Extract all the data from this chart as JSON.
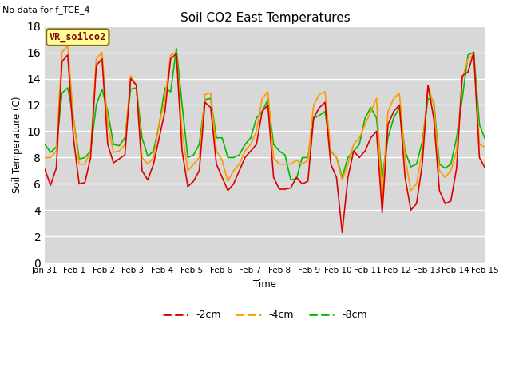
{
  "title": "Soil CO2 East Temperatures",
  "subtitle": "No data for f_TCE_4",
  "ylabel": "Soil Temperature (C)",
  "xlabel": "Time",
  "box_label": "VR_soilco2",
  "ylim": [
    0,
    18
  ],
  "yticks": [
    0,
    2,
    4,
    6,
    8,
    10,
    12,
    14,
    16,
    18
  ],
  "legend_labels": [
    "-2cm",
    "-4cm",
    "-8cm"
  ],
  "line_colors": [
    "#dd0000",
    "#ff9900",
    "#00bb00"
  ],
  "background_color": "#d8d8d8",
  "x_dates": [
    "Jan 31",
    "Feb 1",
    "Feb 2",
    "Feb 3",
    "Feb 4",
    "Feb 5",
    "Feb 6",
    "Feb 7",
    "Feb 8",
    "Feb 9",
    "Feb 10",
    "Feb 11",
    "Feb 12",
    "Feb 13",
    "Feb 14",
    "Feb 15"
  ],
  "t_2cm": [
    7.1,
    5.9,
    7.2,
    15.3,
    15.8,
    9.5,
    6.0,
    6.1,
    8.0,
    15.0,
    15.5,
    9.0,
    7.6,
    7.9,
    8.2,
    14.0,
    13.5,
    7.0,
    6.3,
    7.5,
    9.5,
    11.5,
    15.5,
    15.9,
    8.5,
    5.8,
    6.2,
    7.0,
    12.2,
    11.8,
    7.5,
    6.5,
    5.5,
    6.0,
    7.0,
    8.0,
    8.5,
    9.0,
    11.5,
    12.0,
    6.5,
    5.6,
    5.6,
    5.7,
    6.5,
    6.0,
    6.2,
    11.0,
    11.8,
    12.2,
    7.5,
    6.5,
    2.3,
    6.5,
    8.5,
    8.0,
    8.5,
    9.5,
    10.0,
    3.8,
    10.5,
    11.5,
    12.0,
    6.5,
    4.0,
    4.5,
    7.5,
    13.5,
    11.0,
    5.5,
    4.5,
    4.7,
    7.2,
    14.2,
    14.5,
    16.0,
    8.0,
    7.2
  ],
  "t_4cm": [
    8.0,
    8.0,
    8.5,
    16.0,
    16.5,
    11.0,
    7.5,
    7.5,
    8.5,
    15.5,
    16.0,
    10.5,
    8.4,
    8.5,
    9.0,
    14.2,
    13.5,
    8.0,
    7.5,
    8.0,
    10.5,
    12.5,
    15.8,
    16.0,
    10.0,
    7.0,
    7.5,
    8.0,
    12.8,
    12.9,
    8.5,
    7.8,
    6.2,
    7.0,
    7.5,
    8.5,
    9.0,
    10.0,
    12.5,
    13.0,
    8.0,
    7.5,
    7.5,
    7.5,
    7.8,
    7.5,
    7.8,
    12.0,
    12.8,
    13.0,
    8.5,
    8.0,
    6.3,
    7.5,
    9.0,
    9.5,
    10.5,
    11.5,
    12.5,
    4.8,
    11.5,
    12.5,
    12.9,
    8.0,
    5.5,
    6.0,
    8.5,
    13.5,
    12.0,
    7.0,
    6.5,
    7.0,
    8.5,
    14.0,
    15.5,
    15.8,
    9.0,
    8.8
  ],
  "t_8cm": [
    9.0,
    8.4,
    8.8,
    12.9,
    13.3,
    11.0,
    7.9,
    8.0,
    8.5,
    12.0,
    13.2,
    11.5,
    9.0,
    8.9,
    9.5,
    13.2,
    13.3,
    9.5,
    8.1,
    8.5,
    10.5,
    13.3,
    13.0,
    16.3,
    12.0,
    8.0,
    8.2,
    9.0,
    12.4,
    12.5,
    9.5,
    9.5,
    8.0,
    8.0,
    8.2,
    9.0,
    9.5,
    11.0,
    11.5,
    12.4,
    9.0,
    8.5,
    8.2,
    6.3,
    6.4,
    8.0,
    8.0,
    11.0,
    11.2,
    11.5,
    8.5,
    8.0,
    6.5,
    8.0,
    8.5,
    9.0,
    11.0,
    11.8,
    11.0,
    6.5,
    9.5,
    11.0,
    11.8,
    8.5,
    7.3,
    7.5,
    9.2,
    12.5,
    12.3,
    7.5,
    7.2,
    7.5,
    9.5,
    12.5,
    15.8,
    16.0,
    10.5,
    9.4
  ]
}
